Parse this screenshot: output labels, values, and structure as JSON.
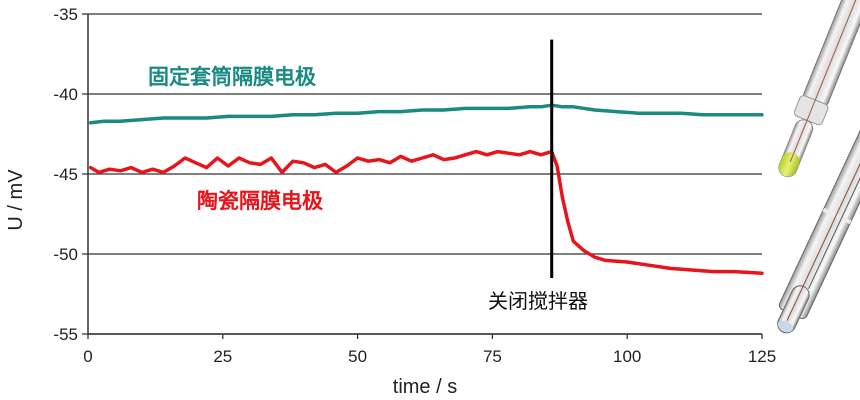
{
  "chart_data": {
    "type": "line",
    "title": "",
    "xlabel": "time / s",
    "ylabel": "U / mV",
    "xlim": [
      0,
      125
    ],
    "ylim": [
      -55,
      -35
    ],
    "x_ticks": [
      0,
      25,
      50,
      75,
      100,
      125
    ],
    "y_ticks": [
      -35,
      -40,
      -45,
      -50,
      -55
    ],
    "x_tick_labels": [
      "0",
      "25",
      "50",
      "75",
      "100",
      "125"
    ],
    "y_tick_labels": [
      "-35",
      "-40",
      "-45",
      "-50",
      "-55"
    ],
    "grid": "horizontal",
    "legend": "inline labels",
    "series": [
      {
        "name": "固定套筒隔膜电极",
        "color": "#1a8a82",
        "x": [
          0.5,
          3,
          6,
          10,
          14,
          18,
          22,
          26,
          30,
          34,
          38,
          42,
          46,
          50,
          54,
          58,
          62,
          66,
          70,
          74,
          78,
          82,
          84,
          86,
          88,
          90,
          94,
          98,
          102,
          106,
          110,
          114,
          118,
          122,
          125
        ],
        "values": [
          -41.8,
          -41.7,
          -41.7,
          -41.6,
          -41.5,
          -41.5,
          -41.5,
          -41.4,
          -41.4,
          -41.4,
          -41.3,
          -41.3,
          -41.2,
          -41.2,
          -41.1,
          -41.1,
          -41.0,
          -41.0,
          -40.9,
          -40.9,
          -40.9,
          -40.8,
          -40.8,
          -40.7,
          -40.8,
          -40.8,
          -41.0,
          -41.1,
          -41.2,
          -41.2,
          -41.2,
          -41.3,
          -41.3,
          -41.3,
          -41.3
        ]
      },
      {
        "name": "陶瓷隔膜电极",
        "color": "#e8141b",
        "x": [
          0.5,
          2,
          4,
          6,
          8,
          10,
          12,
          14,
          16,
          18,
          20,
          22,
          24,
          26,
          28,
          30,
          32,
          34,
          36,
          38,
          40,
          42,
          44,
          46,
          48,
          50,
          52,
          54,
          56,
          58,
          60,
          62,
          64,
          66,
          68,
          70,
          72,
          74,
          76,
          78,
          80,
          82,
          84,
          86,
          87,
          88,
          89,
          90,
          92,
          94,
          96,
          100,
          104,
          108,
          112,
          116,
          120,
          125
        ],
        "values": [
          -44.6,
          -44.9,
          -44.7,
          -44.8,
          -44.6,
          -44.9,
          -44.7,
          -44.9,
          -44.5,
          -44.0,
          -44.3,
          -44.6,
          -44.0,
          -44.5,
          -44.0,
          -44.3,
          -44.4,
          -44.0,
          -44.9,
          -44.2,
          -44.3,
          -44.6,
          -44.4,
          -44.9,
          -44.5,
          -44.0,
          -44.2,
          -44.1,
          -44.3,
          -43.9,
          -44.2,
          -44.0,
          -43.8,
          -44.1,
          -44.0,
          -43.8,
          -43.6,
          -43.8,
          -43.6,
          -43.7,
          -43.8,
          -43.6,
          -43.8,
          -43.6,
          -44.5,
          -46.5,
          -48.0,
          -49.2,
          -49.8,
          -50.2,
          -50.4,
          -50.5,
          -50.7,
          -50.9,
          -51.0,
          -51.1,
          -51.1,
          -51.2
        ]
      }
    ],
    "annotations": [
      {
        "type": "vline",
        "x": 86,
        "y_from": -36.6,
        "y_to": -51.5,
        "label": "关闭搅拌器"
      }
    ]
  },
  "labels": {
    "series_1": "固定套筒隔膜电极",
    "series_2": "陶瓷隔膜电极",
    "annotation": "关闭搅拌器",
    "xlabel": "time / s",
    "ylabel": "U / mV",
    "x_ticks": [
      "0",
      "25",
      "50",
      "75",
      "100",
      "125"
    ],
    "y_ticks": [
      "-35",
      "-40",
      "-45",
      "-50",
      "-55"
    ]
  },
  "colors": {
    "teal": "#1a8a82",
    "red": "#e8141b",
    "axis": "#333333",
    "grid": "#333333"
  }
}
